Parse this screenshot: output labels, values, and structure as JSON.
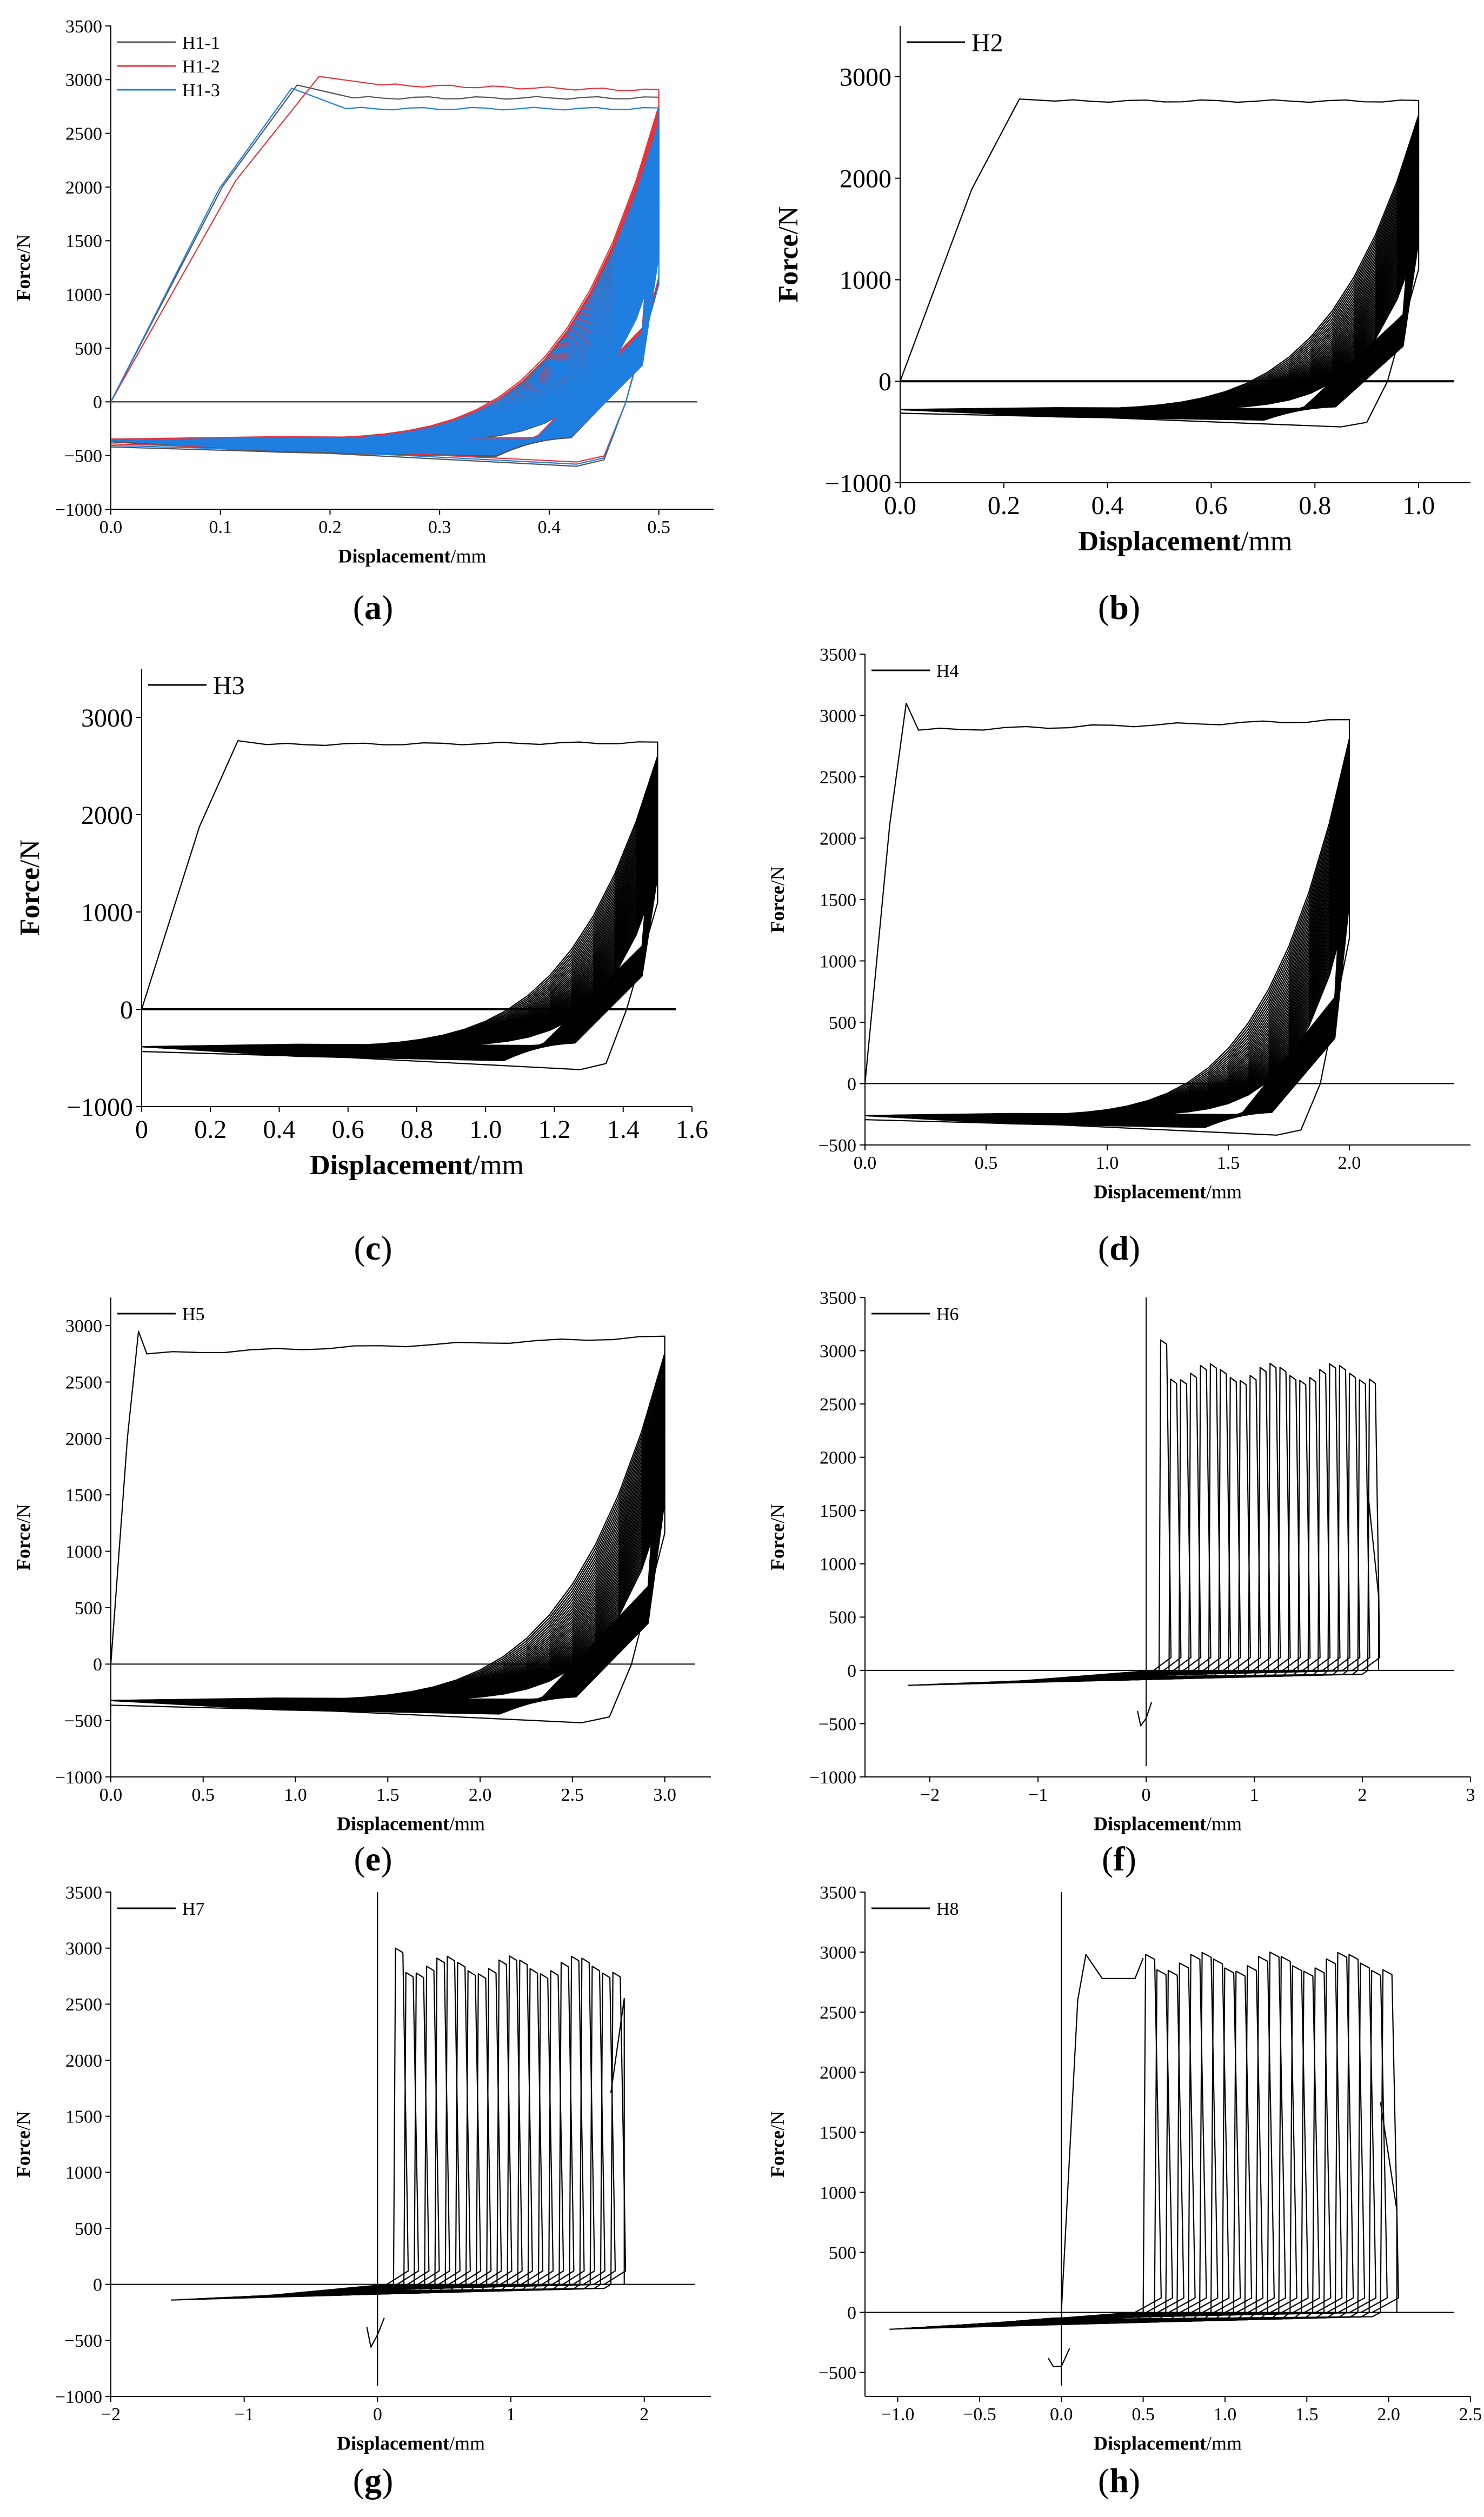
{
  "figure": {
    "panel_labels": [
      "(a)",
      "(b)",
      "(c)",
      "(d)",
      "(e)",
      "(f)",
      "(g)",
      "(h)"
    ]
  },
  "chart_data": [
    {
      "id": "a",
      "type": "line",
      "panel_label": "(a)",
      "title": "",
      "xlabel_bold": "Displacement",
      "xlabel_unit": "/mm",
      "ylabel_bold": "Force",
      "ylabel_unit": "/N",
      "xlim": [
        0,
        0.55
      ],
      "ylim": [
        -1000,
        3500
      ],
      "xticks": [
        "0.0",
        "0.1",
        "0.2",
        "0.3",
        "0.4",
        "0.5"
      ],
      "yticks": [
        "-1000",
        "-500",
        "0",
        "500",
        "1000",
        "1500",
        "2000",
        "2500",
        "3000",
        "3500"
      ],
      "legend_position": "top-left",
      "series": [
        {
          "name": "H1-1",
          "color": "#555555",
          "peak_x": 0.17,
          "peak_y": 2950,
          "plateau_y": 2830,
          "end_x": 0.5,
          "end_y": 2830,
          "min_y": -600,
          "cycles": 45
        },
        {
          "name": "H1-2",
          "color": "#e8323c",
          "peak_x": 0.19,
          "peak_y": 3030,
          "plateau_y": 2950,
          "end_x": 0.5,
          "end_y": 2900,
          "min_y": -560,
          "cycles": 45
        },
        {
          "name": "H1-3",
          "color": "#1f7fe0",
          "peak_x": 0.165,
          "peak_y": 2920,
          "plateau_y": 2730,
          "end_x": 0.5,
          "end_y": 2730,
          "min_y": -580,
          "cycles": 45
        }
      ]
    },
    {
      "id": "b",
      "type": "line",
      "panel_label": "(b)",
      "xlabel_bold": "Displacement",
      "xlabel_unit": "/mm",
      "ylabel_bold": "Force",
      "ylabel_unit": "/N",
      "xlim": [
        0,
        1.1
      ],
      "ylim": [
        -1000,
        3500
      ],
      "xticks": [
        "0.0",
        "0.2",
        "0.4",
        "0.6",
        "0.8",
        "1.0"
      ],
      "yticks": [
        "-1000",
        "0",
        "1000",
        "2000",
        "3000"
      ],
      "legend_position": "top-left",
      "series": [
        {
          "name": "H2",
          "color": "#000000",
          "peak_x": 0.23,
          "peak_y": 2780,
          "plateau_y": 2760,
          "end_x": 1.0,
          "end_y": 2760,
          "min_y": -450,
          "cycles": 40
        }
      ]
    },
    {
      "id": "c",
      "type": "line",
      "panel_label": "(c)",
      "xlabel_bold": "Displacement",
      "xlabel_unit": "/mm",
      "ylabel_bold": "Force",
      "ylabel_unit": "/N",
      "xlim": [
        0,
        1.6
      ],
      "ylim": [
        -1000,
        3500
      ],
      "xticks": [
        "0",
        "0.2",
        "0.4",
        "0.6",
        "0.8",
        "1.0",
        "1.2",
        "1.4",
        "1.6"
      ],
      "yticks": [
        "-1000",
        "0",
        "1000",
        "2000",
        "3000"
      ],
      "legend_position": "top-left",
      "series": [
        {
          "name": "H3",
          "color": "#000000",
          "peak_x": 0.28,
          "peak_y": 2760,
          "plateau_y": 2720,
          "end_x": 1.5,
          "end_y": 2740,
          "min_y": -620,
          "cycles": 40
        }
      ]
    },
    {
      "id": "d",
      "type": "line",
      "panel_label": "(d)",
      "xlabel_bold": "Displacement",
      "xlabel_unit": "/mm",
      "ylabel_bold": "Force",
      "ylabel_unit": "/N",
      "xlim": [
        0,
        2.5
      ],
      "ylim": [
        -500,
        3500
      ],
      "xticks": [
        "0.0",
        "0.5",
        "1.0",
        "1.5",
        "2.0"
      ],
      "yticks": [
        "-500",
        "0",
        "500",
        "1000",
        "1500",
        "2000",
        "2500",
        "3000",
        "3500"
      ],
      "legend_position": "top-left",
      "series": [
        {
          "name": "H4",
          "color": "#000000",
          "peak_x": 0.17,
          "peak_y": 3100,
          "plateau_y": 2880,
          "end_x": 2.0,
          "end_y": 2960,
          "min_y": -420,
          "cycles": 40
        }
      ]
    },
    {
      "id": "e",
      "type": "line",
      "panel_label": "(e)",
      "xlabel_bold": "Displacement",
      "xlabel_unit": "/mm",
      "ylabel_bold": "Force",
      "ylabel_unit": "/N",
      "xlim": [
        0,
        3.25
      ],
      "ylim": [
        -1000,
        3250
      ],
      "xticks": [
        "0.0",
        "0.5",
        "1.0",
        "1.5",
        "2.0",
        "2.5",
        "3.0"
      ],
      "yticks": [
        "-1000",
        "-500",
        "0",
        "500",
        "1000",
        "1500",
        "2000",
        "2500",
        "3000"
      ],
      "legend_position": "top-left",
      "series": [
        {
          "name": "H5",
          "color": "#000000",
          "peak_x": 0.15,
          "peak_y": 2950,
          "plateau_y": 2750,
          "end_x": 3.0,
          "end_y": 2900,
          "min_y": -520,
          "cycles": 40
        }
      ]
    },
    {
      "id": "f",
      "type": "line",
      "panel_label": "(f)",
      "xlabel_bold": "Displacement",
      "xlabel_unit": "/mm",
      "ylabel_bold": "Force",
      "ylabel_unit": "/N",
      "xlim": [
        -2.6,
        3
      ],
      "ylim": [
        -1000,
        3500
      ],
      "xticks": [
        "-2",
        "-1",
        "0",
        "1",
        "2",
        "3"
      ],
      "yticks": [
        "-1000",
        "-500",
        "0",
        "500",
        "1000",
        "1500",
        "2000",
        "2500",
        "3000",
        "3500"
      ],
      "legend_position": "top-left",
      "series": [
        {
          "name": "H6",
          "color": "#000000",
          "peak_x": 0.15,
          "peak_y": 3100,
          "plateau_y": 2800,
          "end_x": 2.15,
          "end_y": 700,
          "min_y": -520,
          "cycles": 22,
          "neg_x": -2.2
        }
      ]
    },
    {
      "id": "g",
      "type": "line",
      "panel_label": "(g)",
      "xlabel_bold": "Displacement",
      "xlabel_unit": "/mm",
      "ylabel_bold": "Force",
      "ylabel_unit": "/N",
      "xlim": [
        -2,
        2.5
      ],
      "ylim": [
        -1000,
        3500
      ],
      "xticks": [
        "-2",
        "-1",
        "0",
        "1",
        "2"
      ],
      "yticks": [
        "-1000",
        "-500",
        "0",
        "500",
        "1000",
        "1500",
        "2000",
        "2500",
        "3000",
        "3500"
      ],
      "legend_position": "top-left",
      "series": [
        {
          "name": "H7",
          "color": "#000000",
          "peak_x": 0.18,
          "peak_y": 3000,
          "plateau_y": 2850,
          "end_x": 1.85,
          "end_y": 2550,
          "min_y": -560,
          "cycles": 22,
          "neg_x": -1.55
        }
      ]
    },
    {
      "id": "h",
      "type": "line",
      "panel_label": "(h)",
      "xlabel_bold": "Displacement",
      "xlabel_unit": "/mm",
      "ylabel_bold": "Force",
      "ylabel_unit": "/N",
      "xlim": [
        -1.2,
        2.5
      ],
      "ylim": [
        -700,
        3500
      ],
      "xticks": [
        "-1.0",
        "-0.5",
        "0.0",
        "0.5",
        "1.0",
        "1.5",
        "2.0",
        "2.5"
      ],
      "yticks": [
        "-500",
        "0",
        "500",
        "1000",
        "1500",
        "2000",
        "2500",
        "3000",
        "3500"
      ],
      "legend_position": "top-left",
      "series": [
        {
          "name": "H8",
          "color": "#000000",
          "peak_x": 0.15,
          "peak_y": 2980,
          "plateau_y": 2920,
          "end_x": 2.05,
          "end_y": 850,
          "min_y": -450,
          "cycles": 22,
          "neg_x": -1.05
        }
      ]
    }
  ]
}
